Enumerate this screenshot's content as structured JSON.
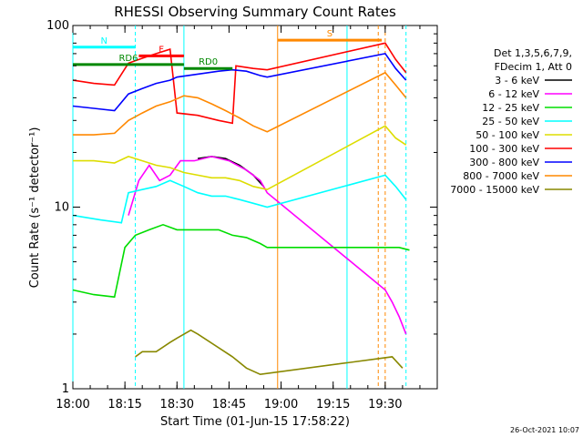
{
  "chart_data": {
    "type": "line",
    "title": "RHESSI Observing Summary Count Rates",
    "xlabel": "Start Time (01-Jun-15 17:58:22)",
    "ylabel": "Count Rate (s⁻¹ detector⁻¹)",
    "yscale": "log",
    "ylim": [
      1,
      100
    ],
    "xlim_minutes": [
      0,
      105
    ],
    "x_tick_labels": [
      "18:00",
      "18:15",
      "18:30",
      "18:45",
      "19:00",
      "19:15",
      "19:30"
    ],
    "x_tick_minutes": [
      0,
      15,
      30,
      45,
      60,
      75,
      90
    ],
    "y_tick_labels": [
      "1",
      "10",
      "100"
    ],
    "y_tick_values": [
      1,
      10,
      100
    ],
    "legend_header": [
      "Det 1,3,5,6,7,9,",
      "FDecim 1, Att 0"
    ],
    "legend_position": "right",
    "series": [
      {
        "name": "3 - 6 keV",
        "color": "#000000",
        "points": [
          [
            36,
            18.5
          ],
          [
            40,
            19
          ],
          [
            44,
            18.5
          ],
          [
            48,
            17
          ],
          [
            52,
            15
          ],
          [
            55,
            13
          ]
        ]
      },
      {
        "name": "6 - 12 keV",
        "color": "#ff00ff",
        "points": [
          [
            16,
            9
          ],
          [
            19,
            14
          ],
          [
            22,
            17
          ],
          [
            25,
            14
          ],
          [
            28,
            15
          ],
          [
            31,
            18
          ],
          [
            35,
            18
          ],
          [
            40,
            19
          ],
          [
            45,
            18
          ],
          [
            50,
            16
          ],
          [
            54,
            14
          ],
          [
            56,
            12
          ],
          [
            90,
            3.5
          ],
          [
            92,
            3
          ],
          [
            94,
            2.5
          ],
          [
            96,
            2
          ]
        ]
      },
      {
        "name": "12 - 25 keV",
        "color": "#00dd00",
        "points": [
          [
            0,
            3.5
          ],
          [
            6,
            3.3
          ],
          [
            12,
            3.2
          ],
          [
            15,
            6
          ],
          [
            18,
            7
          ],
          [
            22,
            7.5
          ],
          [
            26,
            8
          ],
          [
            30,
            7.5
          ],
          [
            34,
            7.5
          ],
          [
            38,
            7.5
          ],
          [
            42,
            7.5
          ],
          [
            46,
            7
          ],
          [
            50,
            6.8
          ],
          [
            54,
            6.3
          ],
          [
            56,
            6
          ],
          [
            92,
            6
          ],
          [
            94,
            6
          ],
          [
            97,
            5.8
          ]
        ]
      },
      {
        "name": "25 - 50 keV",
        "color": "#00ffff",
        "points": [
          [
            0,
            9
          ],
          [
            8,
            8.5
          ],
          [
            14,
            8.2
          ],
          [
            16,
            12
          ],
          [
            20,
            12.5
          ],
          [
            24,
            13
          ],
          [
            28,
            14
          ],
          [
            32,
            13
          ],
          [
            36,
            12
          ],
          [
            40,
            11.5
          ],
          [
            44,
            11.5
          ],
          [
            48,
            11
          ],
          [
            52,
            10.5
          ],
          [
            56,
            10
          ],
          [
            90,
            15
          ],
          [
            93,
            13
          ],
          [
            96,
            11
          ]
        ]
      },
      {
        "name": "50 - 100 keV",
        "color": "#dddd00",
        "points": [
          [
            0,
            18
          ],
          [
            6,
            18
          ],
          [
            12,
            17.5
          ],
          [
            16,
            19
          ],
          [
            20,
            18
          ],
          [
            24,
            17
          ],
          [
            28,
            16.5
          ],
          [
            32,
            15.5
          ],
          [
            36,
            15
          ],
          [
            40,
            14.5
          ],
          [
            44,
            14.5
          ],
          [
            48,
            14
          ],
          [
            52,
            13
          ],
          [
            56,
            12.5
          ],
          [
            90,
            28
          ],
          [
            93,
            24
          ],
          [
            96,
            22
          ]
        ]
      },
      {
        "name": "100 - 300 keV",
        "color": "#ff0000",
        "points": [
          [
            0,
            50
          ],
          [
            6,
            48
          ],
          [
            12,
            47
          ],
          [
            16,
            62
          ],
          [
            20,
            66
          ],
          [
            24,
            70
          ],
          [
            28,
            74
          ],
          [
            30,
            33
          ],
          [
            36,
            32
          ],
          [
            42,
            30
          ],
          [
            46,
            29
          ],
          [
            47,
            60
          ],
          [
            52,
            58
          ],
          [
            56,
            57
          ],
          [
            90,
            80
          ],
          [
            93,
            65
          ],
          [
            96,
            55
          ]
        ]
      },
      {
        "name": "300 - 800 keV",
        "color": "#0000ff",
        "points": [
          [
            0,
            36
          ],
          [
            6,
            35
          ],
          [
            12,
            34
          ],
          [
            16,
            42
          ],
          [
            20,
            45
          ],
          [
            24,
            48
          ],
          [
            28,
            50
          ],
          [
            30,
            52
          ],
          [
            36,
            54
          ],
          [
            42,
            56
          ],
          [
            46,
            57
          ],
          [
            50,
            56
          ],
          [
            54,
            53
          ],
          [
            56,
            52
          ],
          [
            90,
            70
          ],
          [
            93,
            58
          ],
          [
            96,
            50
          ]
        ]
      },
      {
        "name": "800 - 7000 keV",
        "color": "#ff8800",
        "points": [
          [
            0,
            25
          ],
          [
            6,
            25
          ],
          [
            12,
            25.5
          ],
          [
            16,
            30
          ],
          [
            20,
            33
          ],
          [
            24,
            36
          ],
          [
            28,
            38
          ],
          [
            32,
            41
          ],
          [
            36,
            40
          ],
          [
            40,
            37
          ],
          [
            44,
            34
          ],
          [
            48,
            31
          ],
          [
            52,
            28
          ],
          [
            56,
            26
          ],
          [
            90,
            55
          ],
          [
            93,
            47
          ],
          [
            96,
            40
          ]
        ]
      },
      {
        "name": "7000 - 15000 keV",
        "color": "#888800",
        "points": [
          [
            18,
            1.5
          ],
          [
            20,
            1.6
          ],
          [
            24,
            1.6
          ],
          [
            28,
            1.8
          ],
          [
            30,
            1.9
          ],
          [
            34,
            2.1
          ],
          [
            36,
            2
          ],
          [
            46,
            1.5
          ],
          [
            50,
            1.3
          ],
          [
            54,
            1.2
          ],
          [
            92,
            1.5
          ],
          [
            95,
            1.3
          ]
        ]
      }
    ],
    "annotations": [
      {
        "label": "N",
        "color": "#00ffff",
        "x_start": 0,
        "x_end": 18,
        "y": 76
      },
      {
        "label": "F",
        "color": "#ff0000",
        "x_start": 19,
        "x_end": 32,
        "y": 68
      },
      {
        "label": "RD0",
        "color": "#008800",
        "x_start": 32,
        "x_end": 46,
        "y": 58
      },
      {
        "label": "RD6",
        "color": "#008800",
        "x_start": 0,
        "x_end": 32,
        "y": 61
      },
      {
        "label": "S",
        "color": "#ff8800",
        "x_start": 59,
        "x_end": 89,
        "y": 83
      }
    ],
    "vertical_markers": [
      {
        "x": 0,
        "color": "#00ffff",
        "style": "solid"
      },
      {
        "x": 18,
        "color": "#00ffff",
        "style": "dashed"
      },
      {
        "x": 32,
        "color": "#00ffff",
        "style": "solid"
      },
      {
        "x": 59,
        "color": "#ff8800",
        "style": "solid"
      },
      {
        "x": 79,
        "color": "#00ffff",
        "style": "solid"
      },
      {
        "x": 88,
        "color": "#ff8800",
        "style": "dashed"
      },
      {
        "x": 90,
        "color": "#ff8800",
        "style": "dashed"
      },
      {
        "x": 96,
        "color": "#00ffff",
        "style": "dashed"
      }
    ]
  },
  "timestamp": "26-Oct-2021 10:07"
}
